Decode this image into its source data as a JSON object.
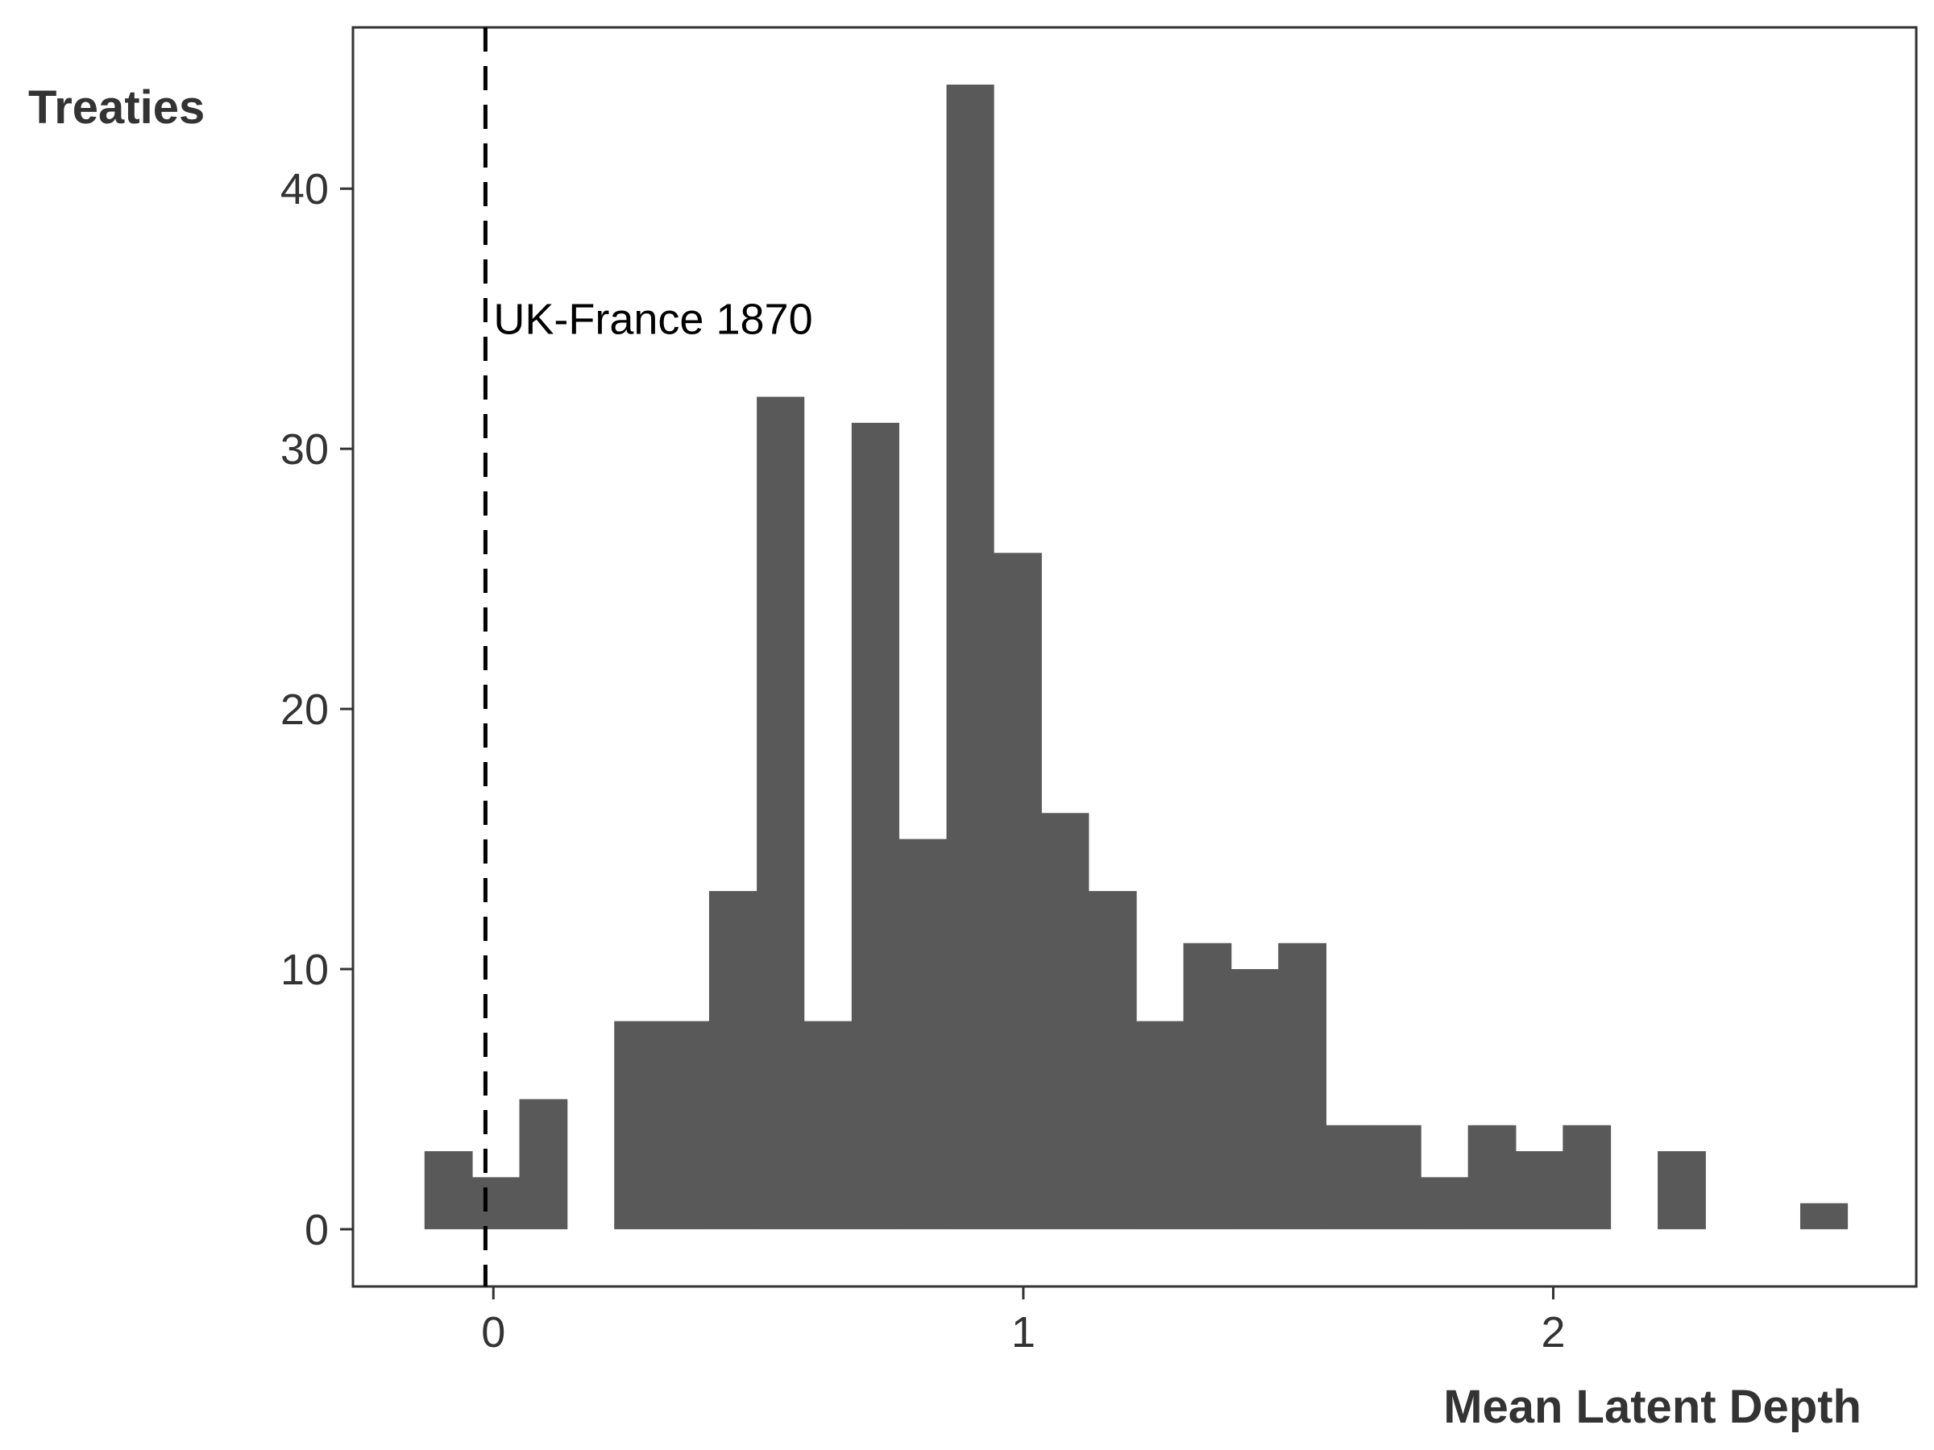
{
  "chart_data": {
    "type": "bar",
    "subtype": "histogram",
    "xlabel": "Mean Latent Depth",
    "ylabel": "Treaties",
    "xlim": [
      -0.265,
      2.685
    ],
    "ylim": [
      -2.2,
      46.2
    ],
    "x_ticks": [
      0,
      1,
      2
    ],
    "y_ticks": [
      0,
      10,
      20,
      30,
      40
    ],
    "x_tick_labels": [
      "0",
      "1",
      "2"
    ],
    "y_tick_labels": [
      "0",
      "10",
      "20",
      "30",
      "40"
    ],
    "grid": false,
    "bin_width": 0.0895,
    "bins": [
      {
        "x0": -0.13,
        "x1": -0.04,
        "count": 3
      },
      {
        "x0": -0.04,
        "x1": 0.049,
        "count": 2
      },
      {
        "x0": 0.049,
        "x1": 0.139,
        "count": 5
      },
      {
        "x0": 0.139,
        "x1": 0.228,
        "count": 0
      },
      {
        "x0": 0.228,
        "x1": 0.318,
        "count": 8
      },
      {
        "x0": 0.318,
        "x1": 0.407,
        "count": 8
      },
      {
        "x0": 0.407,
        "x1": 0.497,
        "count": 13
      },
      {
        "x0": 0.497,
        "x1": 0.586,
        "count": 32
      },
      {
        "x0": 0.586,
        "x1": 0.676,
        "count": 8
      },
      {
        "x0": 0.676,
        "x1": 0.765,
        "count": 31
      },
      {
        "x0": 0.765,
        "x1": 0.855,
        "count": 15
      },
      {
        "x0": 0.855,
        "x1": 0.944,
        "count": 44
      },
      {
        "x0": 0.944,
        "x1": 1.034,
        "count": 26
      },
      {
        "x0": 1.034,
        "x1": 1.123,
        "count": 16
      },
      {
        "x0": 1.123,
        "x1": 1.213,
        "count": 13
      },
      {
        "x0": 1.213,
        "x1": 1.302,
        "count": 8
      },
      {
        "x0": 1.302,
        "x1": 1.392,
        "count": 11
      },
      {
        "x0": 1.392,
        "x1": 1.481,
        "count": 10
      },
      {
        "x0": 1.481,
        "x1": 1.571,
        "count": 11
      },
      {
        "x0": 1.571,
        "x1": 1.66,
        "count": 4
      },
      {
        "x0": 1.66,
        "x1": 1.75,
        "count": 4
      },
      {
        "x0": 1.75,
        "x1": 1.839,
        "count": 2
      },
      {
        "x0": 1.839,
        "x1": 1.929,
        "count": 4
      },
      {
        "x0": 1.929,
        "x1": 2.018,
        "count": 3
      },
      {
        "x0": 2.018,
        "x1": 2.108,
        "count": 4
      },
      {
        "x0": 2.108,
        "x1": 2.197,
        "count": 0
      },
      {
        "x0": 2.197,
        "x1": 2.287,
        "count": 3
      },
      {
        "x0": 2.287,
        "x1": 2.376,
        "count": 0
      },
      {
        "x0": 2.376,
        "x1": 2.466,
        "count": 0
      },
      {
        "x0": 2.466,
        "x1": 2.555,
        "count": 1
      }
    ],
    "bar_color": "#595959",
    "reference_line": {
      "x": -0.015,
      "style": "dashed",
      "color": "#000000",
      "label": "UK-France 1870",
      "label_y": 35
    }
  }
}
